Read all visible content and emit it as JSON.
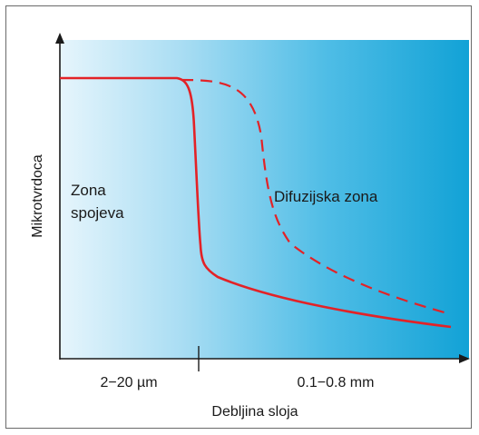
{
  "diagram": {
    "y_axis_label": "Mikrotvrdoca",
    "x_axis_label": "Debljina sloja",
    "zone_left_line1": "Zona",
    "zone_left_line2": "spojeva",
    "zone_right": "Difuzijska zona",
    "tick_left": "2−20 µm",
    "tick_right": "0.1−0.8 mm",
    "colors": {
      "curve": "#e32227",
      "gradient_start": "#e4f4fc",
      "gradient_end": "#1aa5d8",
      "axis": "#1a1a1a"
    }
  }
}
